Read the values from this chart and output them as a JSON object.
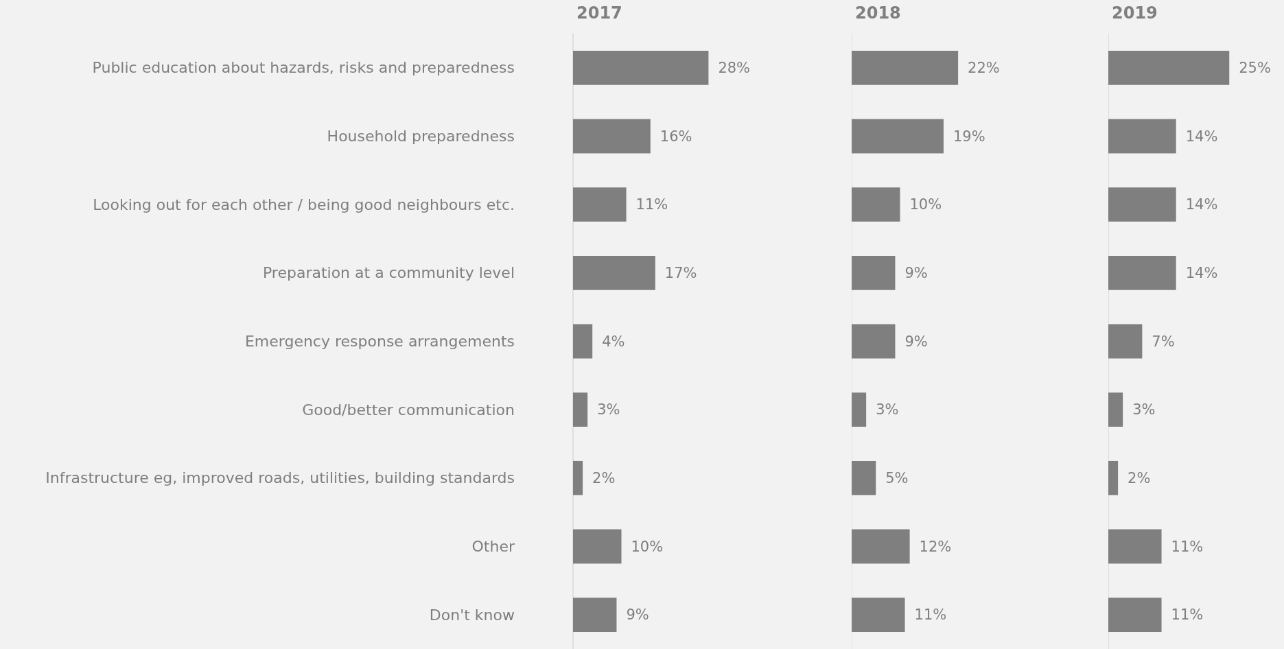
{
  "chart_data": [
    {
      "type": "bar",
      "title": "2017",
      "orientation": "horizontal",
      "categories": [
        "Public education about hazards, risks and preparedness",
        "Household preparedness",
        "Looking out for each other / being good neighbours etc.",
        "Preparation at a community level",
        "Emergency response arrangements",
        "Good/better communication",
        "Infrastructure eg, improved roads, utilities, building standards",
        "Other",
        "Don't know"
      ],
      "values": [
        28,
        16,
        11,
        17,
        4,
        3,
        2,
        10,
        9
      ],
      "value_labels": [
        "28%",
        "16%",
        "11%",
        "17%",
        "4%",
        "3%",
        "2%",
        "10%",
        "9%"
      ],
      "color": "#7f7f7f",
      "tick_labels": "y"
    },
    {
      "type": "bar",
      "title": "2018",
      "orientation": "horizontal",
      "categories": [
        null,
        null,
        null,
        null,
        null,
        null,
        null,
        null,
        null
      ],
      "values": [
        22,
        19,
        10,
        9,
        9,
        3,
        5,
        12,
        11
      ],
      "value_labels": [
        "22%",
        "19%",
        "10%",
        "9%",
        "9%",
        "3%",
        "5%",
        "12%",
        "11%"
      ],
      "color": "#7f7f7f",
      "tick_labels": false
    },
    {
      "type": "bar",
      "title": "2019",
      "orientation": "horizontal",
      "categories": [
        null,
        null,
        null,
        null,
        null,
        null,
        null,
        null,
        null
      ],
      "values": [
        25,
        14,
        14,
        14,
        7,
        3,
        2,
        11,
        11
      ],
      "value_labels": [
        "25%",
        "14%",
        "14%",
        "14%",
        "7%",
        "3%",
        "2%",
        "11%",
        "11%"
      ],
      "color": "#7f7f7f",
      "tick_labels": false
    }
  ]
}
